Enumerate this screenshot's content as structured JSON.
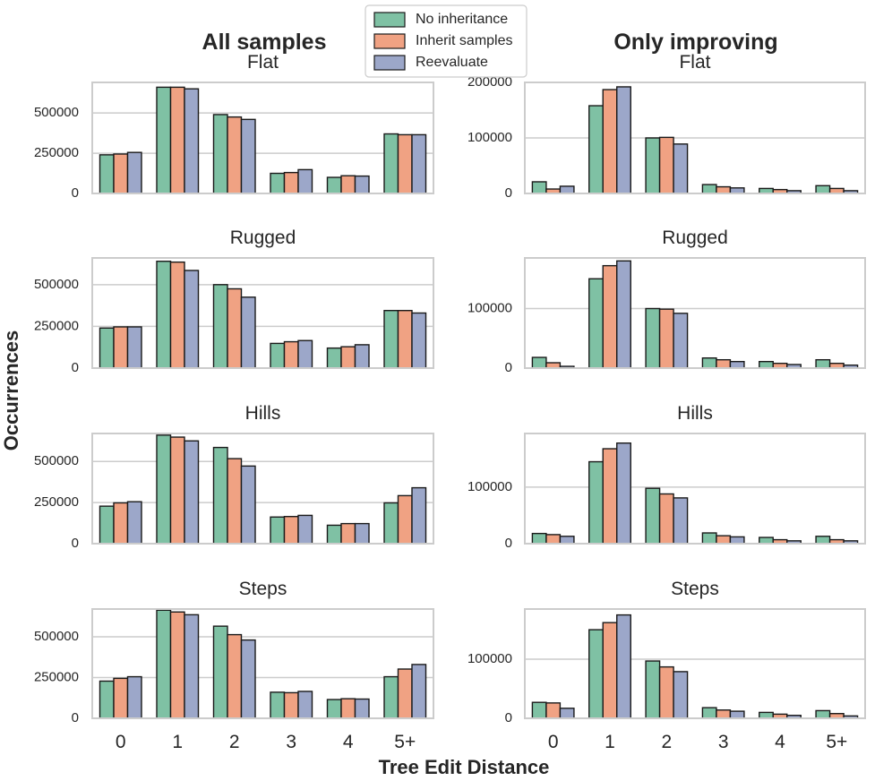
{
  "colors": {
    "no_inheritance": "#7fc1a4",
    "inherit_samples": "#f0a283",
    "reevaluate": "#9ca7c9",
    "grid": "#cccccc",
    "text": "#262626"
  },
  "chart_data": {
    "type": "bar",
    "xlabel": "Tree Edit Distance",
    "ylabel": "Occurrences",
    "legend": {
      "placement": "top-center",
      "entries": [
        "No inheritance",
        "Inherit samples",
        "Reevaluate"
      ]
    },
    "categories": [
      "0",
      "1",
      "2",
      "3",
      "4",
      "5+"
    ],
    "columns": [
      {
        "title": "All samples",
        "panels": [
          {
            "title": "Flat",
            "ylim": [
              0,
              690000
            ],
            "yticks": [
              0,
              250000,
              500000
            ],
            "series": [
              {
                "name": "No inheritance",
                "values": [
                  240000,
                  660000,
                  490000,
                  125000,
                  100000,
                  370000
                ]
              },
              {
                "name": "Inherit samples",
                "values": [
                  245000,
                  660000,
                  475000,
                  130000,
                  110000,
                  365000
                ]
              },
              {
                "name": "Reevaluate",
                "values": [
                  255000,
                  650000,
                  460000,
                  148000,
                  108000,
                  365000
                ]
              }
            ]
          },
          {
            "title": "Rugged",
            "ylim": [
              0,
              660000
            ],
            "yticks": [
              0,
              250000,
              500000
            ],
            "series": [
              {
                "name": "No inheritance",
                "values": [
                  240000,
                  640000,
                  500000,
                  148000,
                  120000,
                  345000
                ]
              },
              {
                "name": "Inherit samples",
                "values": [
                  247000,
                  635000,
                  475000,
                  158000,
                  128000,
                  345000
                ]
              },
              {
                "name": "Reevaluate",
                "values": [
                  247000,
                  585000,
                  425000,
                  165000,
                  140000,
                  330000
                ]
              }
            ]
          },
          {
            "title": "Hills",
            "ylim": [
              0,
              670000
            ],
            "yticks": [
              0,
              250000,
              500000
            ],
            "series": [
              {
                "name": "No inheritance",
                "values": [
                  228000,
                  660000,
                  585000,
                  162000,
                  112000,
                  248000
                ]
              },
              {
                "name": "Inherit samples",
                "values": [
                  248000,
                  648000,
                  517000,
                  165000,
                  122000,
                  292000
                ]
              },
              {
                "name": "Reevaluate",
                "values": [
                  255000,
                  625000,
                  472000,
                  172000,
                  122000,
                  340000
                ]
              }
            ]
          },
          {
            "title": "Steps",
            "ylim": [
              0,
              670000
            ],
            "yticks": [
              0,
              250000,
              500000
            ],
            "series": [
              {
                "name": "No inheritance",
                "values": [
                  228000,
                  663000,
                  565000,
                  160000,
                  115000,
                  255000
                ]
              },
              {
                "name": "Inherit samples",
                "values": [
                  245000,
                  652000,
                  513000,
                  157000,
                  120000,
                  302000
                ]
              },
              {
                "name": "Reevaluate",
                "values": [
                  255000,
                  635000,
                  480000,
                  165000,
                  118000,
                  330000
                ]
              }
            ]
          }
        ]
      },
      {
        "title": "Only improving",
        "panels": [
          {
            "title": "Flat",
            "ylim": [
              0,
              200000
            ],
            "yticks": [
              0,
              100000,
              200000
            ],
            "series": [
              {
                "name": "No inheritance",
                "values": [
                  21000,
                  158000,
                  100000,
                  16000,
                  9000,
                  14000
                ]
              },
              {
                "name": "Inherit samples",
                "values": [
                  8000,
                  187000,
                  101000,
                  12000,
                  7000,
                  9000
                ]
              },
              {
                "name": "Reevaluate",
                "values": [
                  13000,
                  192000,
                  89000,
                  10000,
                  5000,
                  5000
                ]
              }
            ]
          },
          {
            "title": "Rugged",
            "ylim": [
              0,
              185000
            ],
            "yticks": [
              0,
              100000
            ],
            "series": [
              {
                "name": "No inheritance",
                "values": [
                  18000,
                  150000,
                  100000,
                  17000,
                  11000,
                  14000
                ]
              },
              {
                "name": "Inherit samples",
                "values": [
                  9000,
                  172000,
                  99000,
                  14000,
                  8000,
                  8000
                ]
              },
              {
                "name": "Reevaluate",
                "values": [
                  3000,
                  180000,
                  92000,
                  11000,
                  6000,
                  5000
                ]
              }
            ]
          },
          {
            "title": "Hills",
            "ylim": [
              0,
              195000
            ],
            "yticks": [
              0,
              100000
            ],
            "series": [
              {
                "name": "No inheritance",
                "values": [
                  18000,
                  145000,
                  98000,
                  19000,
                  11000,
                  13000
                ]
              },
              {
                "name": "Inherit samples",
                "values": [
                  16000,
                  168000,
                  88000,
                  14000,
                  7000,
                  7000
                ]
              },
              {
                "name": "Reevaluate",
                "values": [
                  13000,
                  178000,
                  81000,
                  12000,
                  5000,
                  5000
                ]
              }
            ]
          },
          {
            "title": "Steps",
            "ylim": [
              0,
              185000
            ],
            "yticks": [
              0,
              100000
            ],
            "series": [
              {
                "name": "No inheritance",
                "values": [
                  27000,
                  150000,
                  97000,
                  18000,
                  10000,
                  13000
                ]
              },
              {
                "name": "Inherit samples",
                "values": [
                  26000,
                  162000,
                  87000,
                  14000,
                  7000,
                  8000
                ]
              },
              {
                "name": "Reevaluate",
                "values": [
                  17000,
                  175000,
                  79000,
                  12000,
                  5000,
                  4000
                ]
              }
            ]
          }
        ]
      }
    ]
  }
}
